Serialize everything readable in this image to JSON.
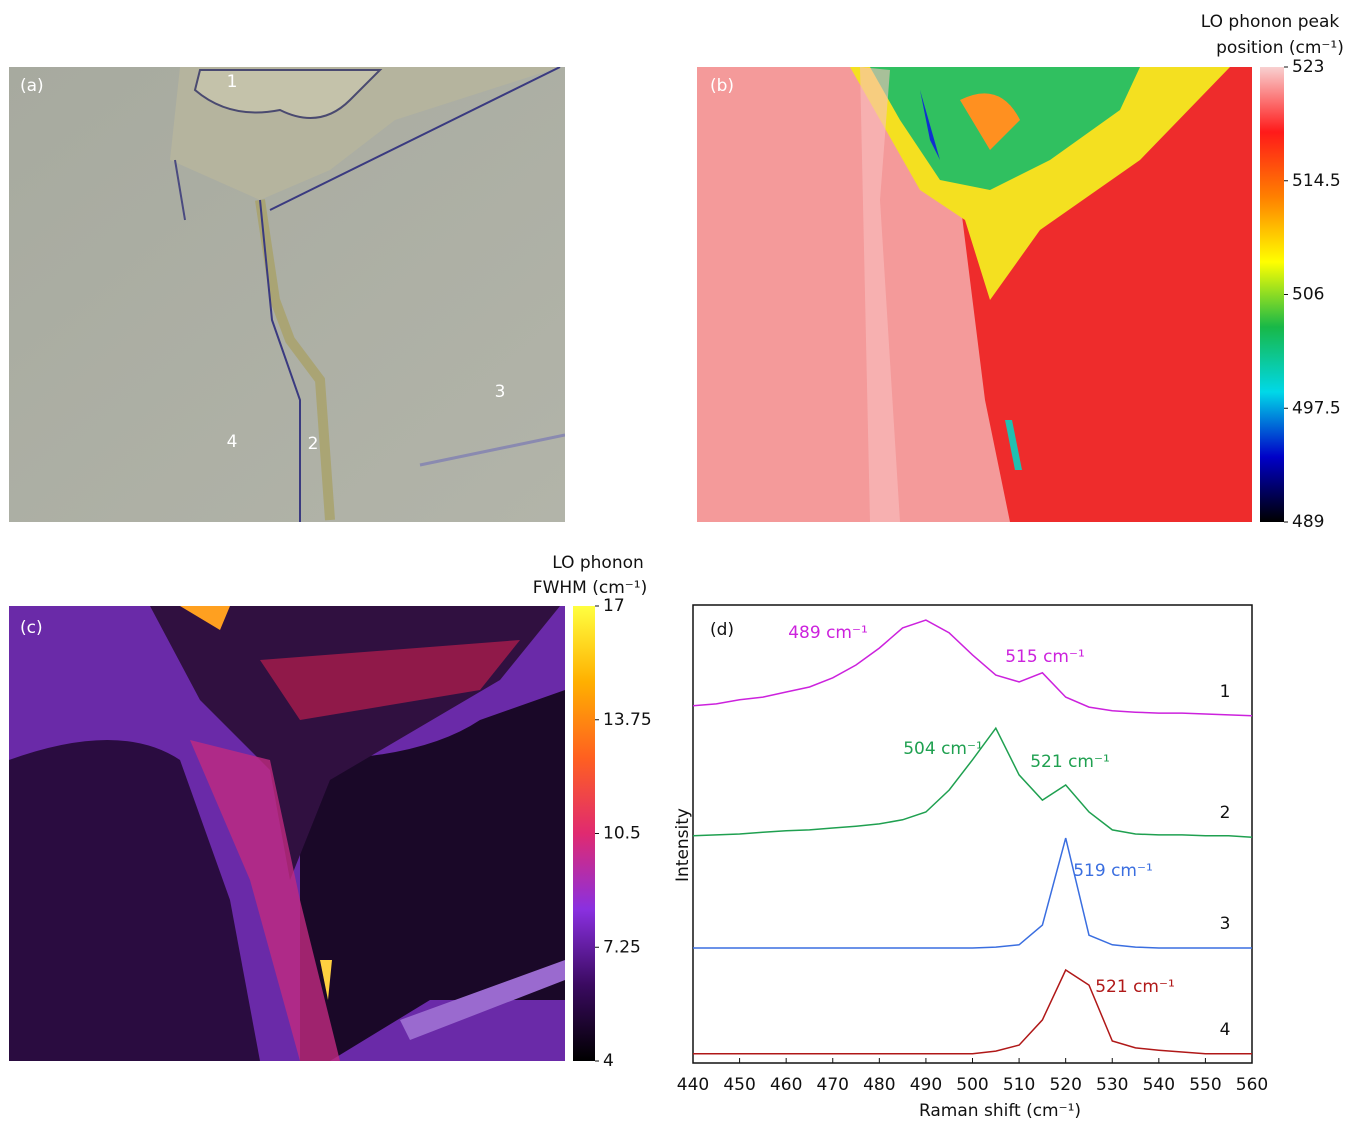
{
  "chart_data": [
    {
      "type": "image",
      "panel_label": "(a)",
      "point_labels": [
        "1",
        "2",
        "3",
        "4"
      ]
    },
    {
      "type": "heatmap",
      "panel_label": "(b)",
      "colorbar_title": [
        "LO phonon peak",
        "position (cm⁻¹)"
      ],
      "ylim": [
        489,
        523
      ],
      "yticks": [
        523,
        514.5,
        506,
        497.5,
        489
      ],
      "colors": [
        "#000000",
        "#0000c8",
        "#00d8e8",
        "#18b848",
        "#ffff00",
        "#ff8000",
        "#ff1a1a",
        "#f8d0d0"
      ]
    },
    {
      "type": "heatmap",
      "panel_label": "(c)",
      "colorbar_title": [
        "LO phonon",
        "FWHM (cm⁻¹)"
      ],
      "ylim": [
        4,
        17
      ],
      "yticks": [
        17,
        13.75,
        10.5,
        7.25,
        4
      ],
      "colors": [
        "#000000",
        "#3a0a60",
        "#8a30e0",
        "#e02a70",
        "#ff6020",
        "#ffb000",
        "#ffff40"
      ]
    },
    {
      "type": "line",
      "panel_label": "(d)",
      "xlabel": "Raman shift (cm⁻¹)",
      "ylabel": "Intensity",
      "xlim": [
        440,
        560
      ],
      "xticks": [
        440,
        450,
        460,
        470,
        480,
        490,
        500,
        510,
        520,
        530,
        540,
        550,
        560
      ],
      "ylim": [
        0,
        100
      ],
      "x": [
        440,
        445,
        450,
        455,
        460,
        465,
        470,
        475,
        480,
        485,
        490,
        495,
        500,
        505,
        510,
        515,
        520,
        525,
        530,
        535,
        540,
        545,
        550,
        555,
        560
      ],
      "series": [
        {
          "name": "1",
          "color": "#cc22dd",
          "values": [
            78.0,
            78.4,
            79.3,
            79.9,
            81.0,
            82.1,
            84.1,
            86.9,
            90.6,
            95.0,
            96.7,
            93.9,
            89.1,
            84.7,
            83.2,
            85.2,
            79.9,
            77.7,
            76.9,
            76.6,
            76.4,
            76.4,
            76.2,
            76.0,
            75.8
          ]
        },
        {
          "name": "2",
          "color": "#1fa050",
          "values": [
            49.6,
            49.8,
            50.0,
            50.4,
            50.7,
            50.9,
            51.3,
            51.7,
            52.2,
            53.1,
            54.8,
            59.6,
            66.2,
            73.1,
            62.9,
            57.4,
            60.7,
            54.8,
            50.9,
            50.0,
            49.8,
            49.8,
            49.6,
            49.6,
            49.3
          ]
        },
        {
          "name": "3",
          "color": "#3a6ee0",
          "values": [
            25.1,
            25.1,
            25.1,
            25.1,
            25.1,
            25.1,
            25.1,
            25.1,
            25.1,
            25.1,
            25.1,
            25.1,
            25.1,
            25.3,
            25.8,
            30.1,
            49.1,
            27.9,
            25.8,
            25.3,
            25.1,
            25.1,
            25.1,
            25.1,
            25.1
          ]
        },
        {
          "name": "4",
          "color": "#b01818",
          "values": [
            2.0,
            2.0,
            2.0,
            2.0,
            2.0,
            2.0,
            2.0,
            2.0,
            2.0,
            2.0,
            2.0,
            2.0,
            2.0,
            2.6,
            3.9,
            9.4,
            20.3,
            17.0,
            4.8,
            3.3,
            2.8,
            2.4,
            2.0,
            2.0,
            2.0
          ]
        }
      ],
      "annotations": [
        "489 cm⁻¹",
        "515 cm⁻¹",
        "504 cm⁻¹",
        "521 cm⁻¹",
        "519 cm⁻¹",
        "521 cm⁻¹"
      ]
    }
  ]
}
